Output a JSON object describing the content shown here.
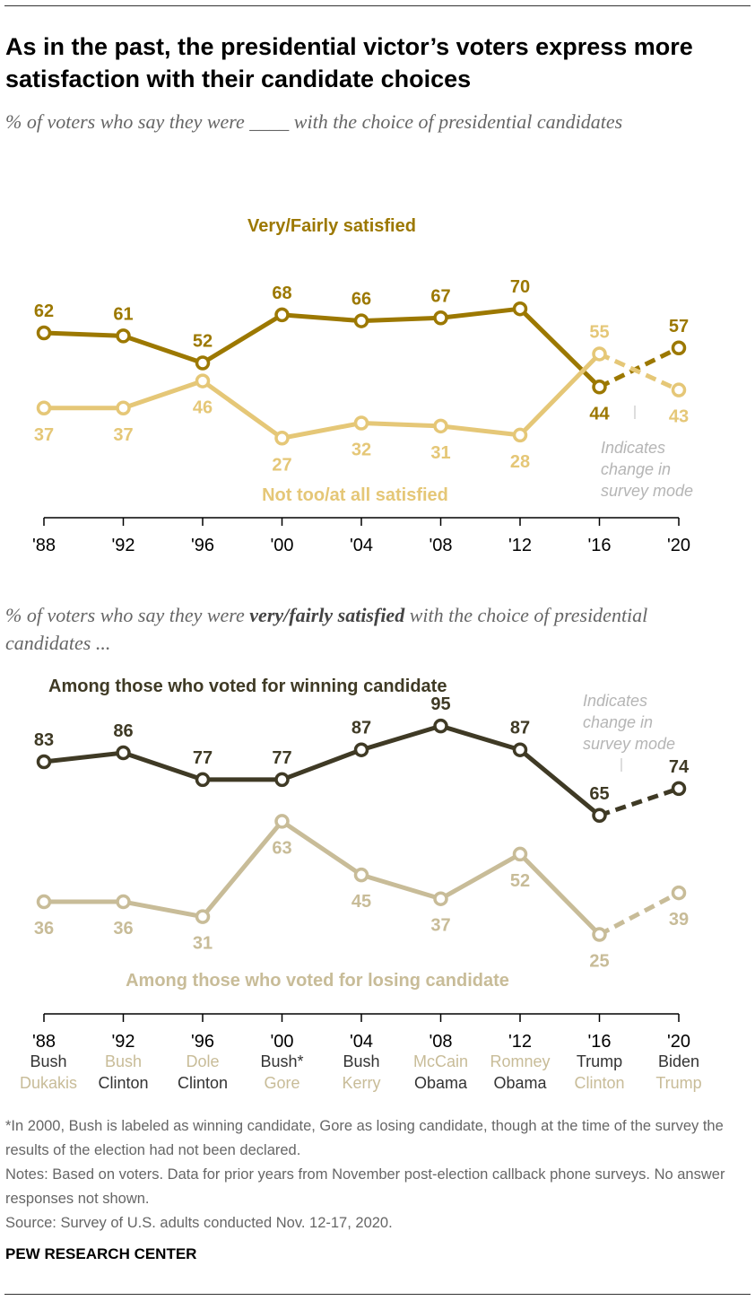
{
  "title": "As in the past, the presidential victor’s voters express more satisfaction with their candidate choices",
  "chart_data": [
    {
      "type": "line",
      "subtitle": "% of voters who say they were ____ with the choice of presidential candidates",
      "categories": [
        "'88",
        "'92",
        "'96",
        "'00",
        "'04",
        "'08",
        "'12",
        "'16",
        "'20"
      ],
      "series": [
        {
          "name": "Very/Fairly satisfied",
          "color": "#9c7800",
          "values": [
            62,
            61,
            52,
            68,
            66,
            67,
            70,
            44,
            57
          ]
        },
        {
          "name": "Not too/at all satisfied",
          "color": "#e5c777",
          "values": [
            37,
            37,
            46,
            27,
            32,
            31,
            28,
            55,
            43
          ]
        }
      ],
      "annotation": "Indicates change in survey mode",
      "ylim": [
        20,
        75
      ]
    },
    {
      "type": "line",
      "subtitle_pre": "% of voters who say they were ",
      "subtitle_bold": "very/fairly satisfied",
      "subtitle_post": " with the choice of presidential candidates ...",
      "categories": [
        "'88",
        "'92",
        "'96",
        "'00",
        "'04",
        "'08",
        "'12",
        "'16",
        "'20"
      ],
      "candidates": [
        [
          "Bush",
          "Dukakis"
        ],
        [
          "Bush",
          "Clinton"
        ],
        [
          "Dole",
          "Clinton"
        ],
        [
          "Bush*",
          "Gore"
        ],
        [
          "Bush",
          "Kerry"
        ],
        [
          "McCain",
          "Obama"
        ],
        [
          "Romney",
          "Obama"
        ],
        [
          "Trump",
          "Clinton"
        ],
        [
          "Biden",
          "Trump"
        ]
      ],
      "winner_first": [
        true,
        false,
        false,
        true,
        true,
        false,
        false,
        true,
        true
      ],
      "series": [
        {
          "name": "Among those who voted for winning candidate",
          "color": "#3f3a25",
          "values": [
            83,
            86,
            77,
            77,
            87,
            95,
            87,
            65,
            74
          ]
        },
        {
          "name": "Among those who voted for losing candidate",
          "color": "#c8bc98",
          "values": [
            36,
            36,
            31,
            63,
            45,
            37,
            52,
            25,
            39
          ]
        }
      ],
      "annotation": "Indicates change in survey mode",
      "ylim": [
        20,
        100
      ]
    }
  ],
  "footnotes": [
    "*In 2000, Bush is labeled as winning candidate, Gore as losing candidate, though at the time of the survey the results of the election had not been declared.",
    "Notes: Based on voters. Data for prior years from November post-election callback phone surveys. No answer responses not shown.",
    "Source: Survey of U.S. adults conducted Nov. 12-17, 2020."
  ],
  "brand": "PEW RESEARCH CENTER"
}
